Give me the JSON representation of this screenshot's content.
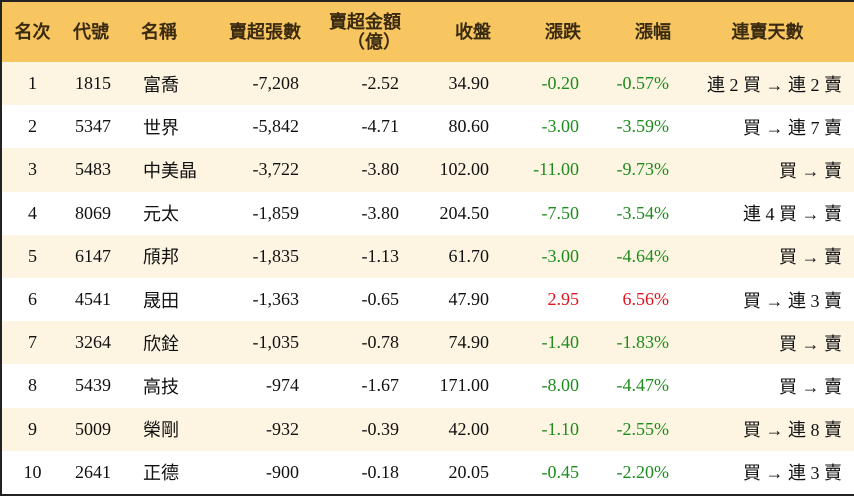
{
  "table": {
    "header": [
      "名次",
      "代號",
      "名稱",
      "賣超張數",
      "賣超金額\n（億）",
      "收盤",
      "漲跌",
      "漲幅",
      "連賣天數"
    ],
    "rows": [
      [
        "1",
        "1815",
        "富喬",
        "-7,208",
        "-2.52",
        "34.90",
        "-0.20",
        "-0.57%",
        "連 2 買 → 連 2 賣"
      ],
      [
        "2",
        "5347",
        "世界",
        "-5,842",
        "-4.71",
        "80.60",
        "-3.00",
        "-3.59%",
        "買 → 連 7 賣"
      ],
      [
        "3",
        "5483",
        "中美晶",
        "-3,722",
        "-3.80",
        "102.00",
        "-11.00",
        "-9.73%",
        "買 → 賣"
      ],
      [
        "4",
        "8069",
        "元太",
        "-1,859",
        "-3.80",
        "204.50",
        "-7.50",
        "-3.54%",
        "連 4 買 → 賣"
      ],
      [
        "5",
        "6147",
        "頎邦",
        "-1,835",
        "-1.13",
        "61.70",
        "-3.00",
        "-4.64%",
        "買 → 賣"
      ],
      [
        "6",
        "4541",
        "晟田",
        "-1,363",
        "-0.65",
        "47.90",
        "2.95",
        "6.56%",
        "買 → 連 3 賣"
      ],
      [
        "7",
        "3264",
        "欣銓",
        "-1,035",
        "-0.78",
        "74.90",
        "-1.40",
        "-1.83%",
        "買 → 賣"
      ],
      [
        "8",
        "5439",
        "高技",
        "-974",
        "-1.67",
        "171.00",
        "-8.00",
        "-4.47%",
        "買 → 賣"
      ],
      [
        "9",
        "5009",
        "榮剛",
        "-932",
        "-0.39",
        "42.00",
        "-1.10",
        "-2.55%",
        "買 → 連 8 賣"
      ],
      [
        "10",
        "2641",
        "正德",
        "-900",
        "-0.18",
        "20.05",
        "-0.45",
        "-2.20%",
        "買 → 連 3 賣"
      ]
    ]
  }
}
